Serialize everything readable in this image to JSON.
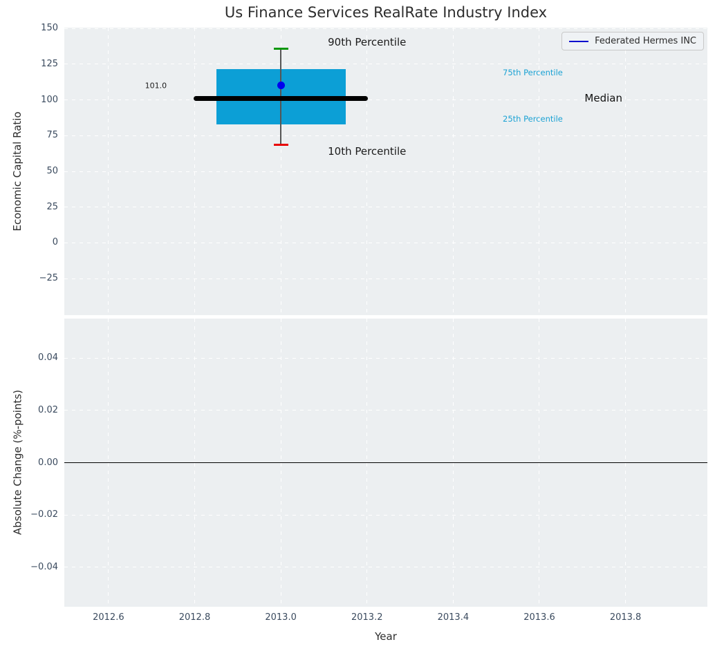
{
  "chart_data": {
    "type": "boxplot",
    "title": "Us Finance Services RealRate Industry Index",
    "xlabel": "Year",
    "xlim": [
      2012.4975,
      2013.99
    ],
    "x_ticks": [
      2012.6,
      2012.8,
      2013.0,
      2013.2,
      2013.4,
      2013.6,
      2013.8
    ],
    "x_tick_labels": [
      "2012.6",
      "2012.8",
      "2013.0",
      "2013.2",
      "2013.4",
      "2013.6",
      "2013.8"
    ],
    "grid": "white dashed on light gray background",
    "legend": {
      "label": "Federated Hermes INC",
      "line_color": "#0000cd",
      "position": "upper right"
    },
    "panels": [
      {
        "name": "economic-capital-ratio",
        "ylabel": "Economic Capital Ratio",
        "ylim": [
          -50.6,
          150.6
        ],
        "yticks": [
          150,
          125,
          100,
          75,
          50,
          25,
          0,
          -25
        ],
        "ytick_labels": [
          "150",
          "125",
          "100",
          "75",
          "50",
          "25",
          "0",
          "−25"
        ],
        "box": {
          "x": 2013.0,
          "p90": 136,
          "p75": 121.5,
          "median": 101.0,
          "p25": 83,
          "p10": 68.5,
          "company_value": 110,
          "box_width": 0.3,
          "median_width": 0.405,
          "cap_width": 0.034,
          "box_color": "#0c9fd6",
          "median_color": "#000000",
          "whisker_color": "#555555",
          "cap_top_color": "#089708",
          "cap_bottom_color": "#e80000",
          "dot_color": "#0000ee"
        },
        "annotations": [
          {
            "name": "annotation-90th-percentile",
            "text": "90th Percentile",
            "x": 2013.2,
            "y": 140.3,
            "color": "#1a1a1a",
            "size": 15,
            "align": "center"
          },
          {
            "name": "annotation-10th-percentile",
            "text": "10th Percentile",
            "x": 2013.2,
            "y": 63.9,
            "color": "#1a1a1a",
            "size": 15,
            "align": "center"
          },
          {
            "name": "annotation-median-value",
            "text": "101.0",
            "x": 2012.71,
            "y": 110.2,
            "color": "#1a1a1a",
            "size": 11,
            "align": "center"
          },
          {
            "name": "annotation-75th-percentile",
            "text": "75th Percentile",
            "x": 2013.515,
            "y": 119.0,
            "color": "#1ba2d4",
            "size": 11.5,
            "align": "left"
          },
          {
            "name": "annotation-25th-percentile",
            "text": "25th Percentile",
            "x": 2013.515,
            "y": 86.7,
            "color": "#1ba2d4",
            "size": 11.5,
            "align": "left"
          },
          {
            "name": "annotation-median-label",
            "text": "Median",
            "x": 2013.705,
            "y": 101.2,
            "color": "#111111",
            "size": 15,
            "align": "left"
          }
        ]
      },
      {
        "name": "absolute-change",
        "ylabel": "Absolute Change (%-points)",
        "ylim": [
          -0.0551,
          0.0551
        ],
        "yticks": [
          0.04,
          0.02,
          0.0,
          -0.02,
          -0.04
        ],
        "ytick_labels": [
          "0.04",
          "0.02",
          "0.00",
          "−0.02",
          "−0.04"
        ],
        "zero_line": 0.0,
        "zero_line_color": "#000000"
      }
    ]
  }
}
